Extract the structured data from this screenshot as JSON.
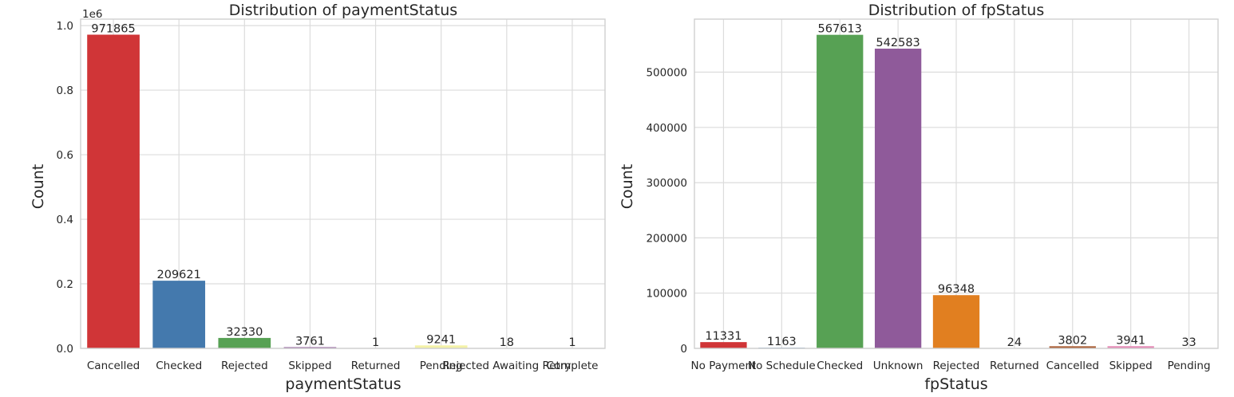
{
  "chart_data": [
    {
      "type": "bar",
      "title": "Distribution of paymentStatus",
      "xlabel": "paymentStatus",
      "ylabel": "Count",
      "y_scale_label": "1e6",
      "categories": [
        "Cancelled",
        "Checked",
        "Rejected",
        "Skipped",
        "Returned",
        "Pending",
        "Rejected Awaiting Retry",
        "Complete"
      ],
      "values": [
        971865,
        209621,
        32330,
        3761,
        1,
        9241,
        18,
        1
      ],
      "value_labels": [
        "971865",
        "209621",
        "32330",
        "3761",
        "1",
        "9241",
        "18",
        "1"
      ],
      "colors": [
        "#d03537",
        "#4479ad",
        "#57a154",
        "#8f5a9a",
        "#e17f20",
        "#f4f2a7",
        "#a85b31",
        "#e589b5"
      ],
      "ylim": [
        0,
        1020000
      ],
      "yticks": [
        0,
        200000,
        400000,
        600000,
        800000,
        1000000
      ],
      "ytick_labels": [
        "0.0",
        "0.2",
        "0.4",
        "0.6",
        "0.8",
        "1.0"
      ],
      "grid": true
    },
    {
      "type": "bar",
      "title": "Distribution of fpStatus",
      "xlabel": "fpStatus",
      "ylabel": "Count",
      "categories": [
        "No Payment",
        "No Schedule",
        "Checked",
        "Unknown",
        "Rejected",
        "Returned",
        "Cancelled",
        "Skipped",
        "Pending"
      ],
      "values": [
        11331,
        1163,
        567613,
        542583,
        96348,
        24,
        3802,
        3941,
        33
      ],
      "value_labels": [
        "11331",
        "1163",
        "567613",
        "542583",
        "96348",
        "24",
        "3802",
        "3941",
        "33"
      ],
      "colors": [
        "#d03537",
        "#4479ad",
        "#57a154",
        "#8f5a9a",
        "#e17f20",
        "#f4f2a7",
        "#a85b31",
        "#e589b5",
        "#999999"
      ],
      "ylim": [
        0,
        596000
      ],
      "yticks": [
        0,
        100000,
        200000,
        300000,
        400000,
        500000
      ],
      "ytick_labels": [
        "0",
        "100000",
        "200000",
        "300000",
        "400000",
        "500000"
      ],
      "grid": true
    }
  ]
}
